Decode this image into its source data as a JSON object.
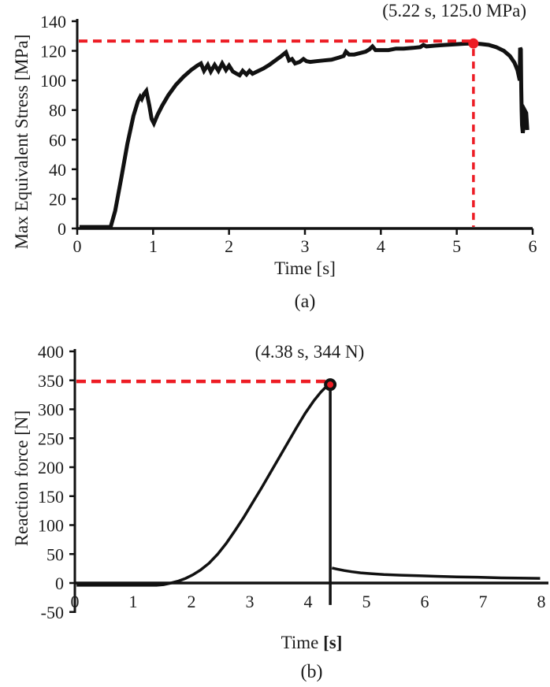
{
  "colors": {
    "curve": "#111111",
    "axis": "#111111",
    "accent_red": "#ed1c24",
    "text": "#1c1c1c"
  },
  "chart_data": [
    {
      "id": "a",
      "type": "line",
      "caption": "(a)",
      "xlabel": "Time [s]",
      "ylabel": "Max Equivalent Stress [MPa]",
      "annotation": "(5.22 s, 125.0 MPa)",
      "peak": {
        "x": 5.22,
        "y": 125.0
      },
      "xlim": [
        0,
        6
      ],
      "ylim": [
        0,
        140
      ],
      "x_ticks": [
        0,
        1,
        2,
        3,
        4,
        5,
        6
      ],
      "y_ticks": [
        0,
        20,
        40,
        60,
        80,
        100,
        120,
        140
      ],
      "grid": false,
      "legend": null,
      "series": [
        {
          "name": "max_equivalent_stress",
          "segments": [
            [
              [
                0.03,
                1
              ],
              [
                0.44,
                1
              ],
              [
                0.5,
                12
              ],
              [
                0.58,
                34
              ],
              [
                0.66,
                57
              ],
              [
                0.74,
                76
              ],
              [
                0.8,
                86
              ],
              [
                0.83,
                89
              ],
              [
                0.85,
                87.5
              ],
              [
                0.88,
                91
              ],
              [
                0.91,
                93
              ],
              [
                0.95,
                83
              ],
              [
                0.98,
                74
              ],
              [
                1.01,
                71
              ],
              [
                1.06,
                77
              ],
              [
                1.12,
                83
              ],
              [
                1.2,
                90
              ],
              [
                1.3,
                97
              ],
              [
                1.4,
                102.5
              ],
              [
                1.5,
                107
              ],
              [
                1.58,
                110
              ],
              [
                1.63,
                111.5
              ],
              [
                1.67,
                106.5
              ],
              [
                1.72,
                110.5
              ],
              [
                1.76,
                106
              ],
              [
                1.81,
                110.5
              ],
              [
                1.86,
                106.5
              ],
              [
                1.91,
                111.5
              ],
              [
                1.96,
                107
              ],
              [
                2.0,
                110
              ],
              [
                2.05,
                106
              ],
              [
                2.1,
                104.5
              ],
              [
                2.14,
                103.5
              ],
              [
                2.18,
                106.5
              ],
              [
                2.23,
                104
              ],
              [
                2.27,
                106.5
              ],
              [
                2.31,
                104.5
              ],
              [
                2.37,
                106
              ],
              [
                2.45,
                108
              ],
              [
                2.53,
                110.5
              ],
              [
                2.61,
                113.5
              ],
              [
                2.69,
                116.5
              ],
              [
                2.75,
                119
              ],
              [
                2.79,
                113.5
              ],
              [
                2.83,
                114.5
              ],
              [
                2.87,
                111.5
              ],
              [
                2.93,
                112.5
              ],
              [
                2.98,
                114.5
              ],
              [
                3.02,
                113
              ],
              [
                3.07,
                112.5
              ],
              [
                3.15,
                113
              ],
              [
                3.25,
                113.5
              ],
              [
                3.35,
                114
              ],
              [
                3.45,
                115.5
              ],
              [
                3.51,
                116.5
              ],
              [
                3.54,
                119.5
              ],
              [
                3.58,
                117.5
              ],
              [
                3.65,
                117.5
              ],
              [
                3.73,
                118.5
              ],
              [
                3.8,
                119.5
              ],
              [
                3.85,
                121
              ],
              [
                3.89,
                123
              ],
              [
                3.93,
                120.5
              ],
              [
                4.0,
                120.5
              ],
              [
                4.1,
                120.5
              ],
              [
                4.2,
                121.5
              ],
              [
                4.3,
                121.5
              ],
              [
                4.42,
                122
              ],
              [
                4.52,
                122.5
              ],
              [
                4.56,
                124
              ],
              [
                4.6,
                123
              ],
              [
                4.72,
                123.5
              ],
              [
                4.85,
                124
              ],
              [
                5.0,
                124.5
              ],
              [
                5.1,
                124.8
              ],
              [
                5.22,
                125
              ],
              [
                5.32,
                124.6
              ],
              [
                5.42,
                124
              ],
              [
                5.52,
                122.5
              ],
              [
                5.62,
                120
              ],
              [
                5.7,
                116.5
              ],
              [
                5.76,
                112
              ],
              [
                5.8,
                107
              ],
              [
                5.83,
                100
              ],
              [
                5.835,
                122
              ],
              [
                5.845,
                121
              ],
              [
                5.85,
                95
              ],
              [
                5.855,
                80
              ],
              [
                5.86,
                70
              ],
              [
                5.87,
                64.5
              ],
              [
                5.885,
                71
              ],
              [
                5.9,
                79.5
              ],
              [
                5.915,
                78
              ],
              [
                5.925,
                70
              ],
              [
                5.93,
                66.5
              ]
            ]
          ]
        }
      ]
    },
    {
      "id": "b",
      "type": "line",
      "caption": "(b)",
      "xlabel": "Time [s]",
      "xlabel_parts": {
        "word": "Time ",
        "unit": "[s]"
      },
      "ylabel": "Reaction force [N]",
      "annotation": "(4.38 s, 344 N)",
      "peak": {
        "x": 4.38,
        "y": 344
      },
      "xlim": [
        0,
        8
      ],
      "ylim": [
        -50,
        400
      ],
      "x_ticks": [
        0,
        1,
        2,
        3,
        4,
        5,
        6,
        7,
        8
      ],
      "y_ticks": [
        -50,
        0,
        50,
        100,
        150,
        200,
        250,
        300,
        350,
        400
      ],
      "grid": false,
      "legend": null,
      "drop_line": {
        "x": 4.38,
        "y_from": 344,
        "y_to": -38
      },
      "series": [
        {
          "name": "reaction_force",
          "segments": [
            [
              [
                0.03,
                -4
              ],
              [
                1.4,
                -4
              ],
              [
                1.52,
                -3
              ],
              [
                1.65,
                0
              ],
              [
                1.78,
                3.5
              ],
              [
                1.9,
                8
              ],
              [
                2.02,
                14
              ],
              [
                2.15,
                22
              ],
              [
                2.3,
                34
              ],
              [
                2.45,
                50
              ],
              [
                2.6,
                69
              ],
              [
                2.75,
                91
              ],
              [
                2.9,
                114
              ],
              [
                3.05,
                139
              ],
              [
                3.2,
                164
              ],
              [
                3.35,
                190
              ],
              [
                3.5,
                216
              ],
              [
                3.65,
                242
              ],
              [
                3.8,
                268
              ],
              [
                3.95,
                293
              ],
              [
                4.1,
                315
              ],
              [
                4.22,
                330
              ],
              [
                4.32,
                340
              ],
              [
                4.38,
                344
              ]
            ],
            [
              [
                4.41,
                26
              ],
              [
                4.5,
                24
              ],
              [
                4.62,
                21.5
              ],
              [
                4.75,
                19.5
              ],
              [
                4.9,
                17.5
              ],
              [
                5.1,
                16
              ],
              [
                5.3,
                14.5
              ],
              [
                5.6,
                13.5
              ],
              [
                5.9,
                12.5
              ],
              [
                6.2,
                11.5
              ],
              [
                6.55,
                10.5
              ],
              [
                6.9,
                10
              ],
              [
                7.25,
                9
              ],
              [
                7.6,
                8.5
              ],
              [
                7.98,
                8
              ]
            ]
          ]
        }
      ]
    }
  ]
}
